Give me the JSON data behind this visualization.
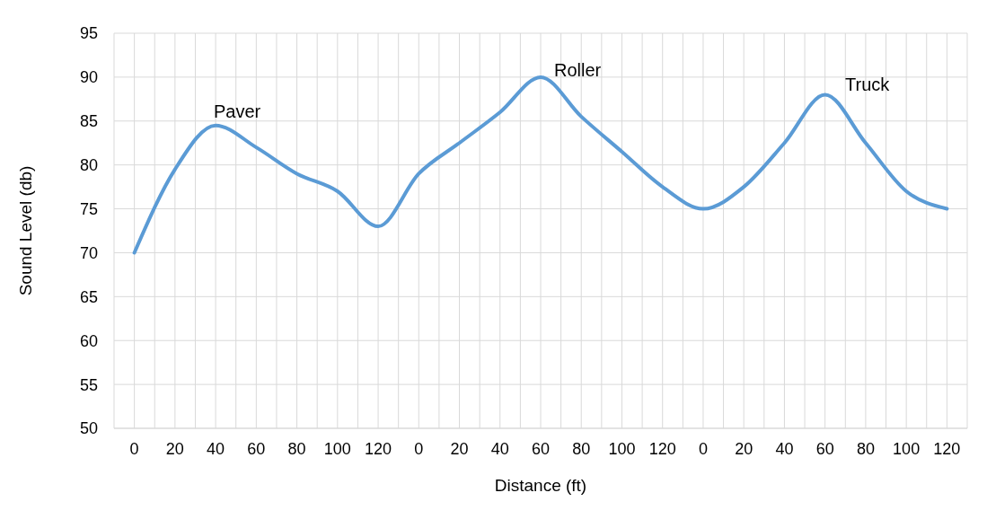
{
  "chart_data": {
    "type": "line",
    "xlabel": "Distance (ft)",
    "ylabel": "Sound Level (db)",
    "categories": [
      "0",
      "20",
      "40",
      "60",
      "80",
      "100",
      "120",
      "0",
      "20",
      "40",
      "60",
      "80",
      "100",
      "120",
      "0",
      "20",
      "40",
      "60",
      "80",
      "100",
      "120"
    ],
    "series": [
      {
        "color": "#5b9bd5",
        "values": [
          70,
          79.5,
          84.5,
          82,
          79,
          77,
          73,
          79,
          82.5,
          86,
          90,
          85.5,
          81.5,
          77.5,
          75,
          77.5,
          82.5,
          88,
          82.5,
          77,
          75
        ]
      }
    ],
    "ylim": [
      50,
      95
    ],
    "yticks": [
      50,
      55,
      60,
      65,
      70,
      75,
      80,
      85,
      90,
      95
    ],
    "grid": true,
    "marker": "none",
    "line_style": "solid",
    "annotations": [
      "Paver",
      "Roller",
      "Truck"
    ]
  }
}
